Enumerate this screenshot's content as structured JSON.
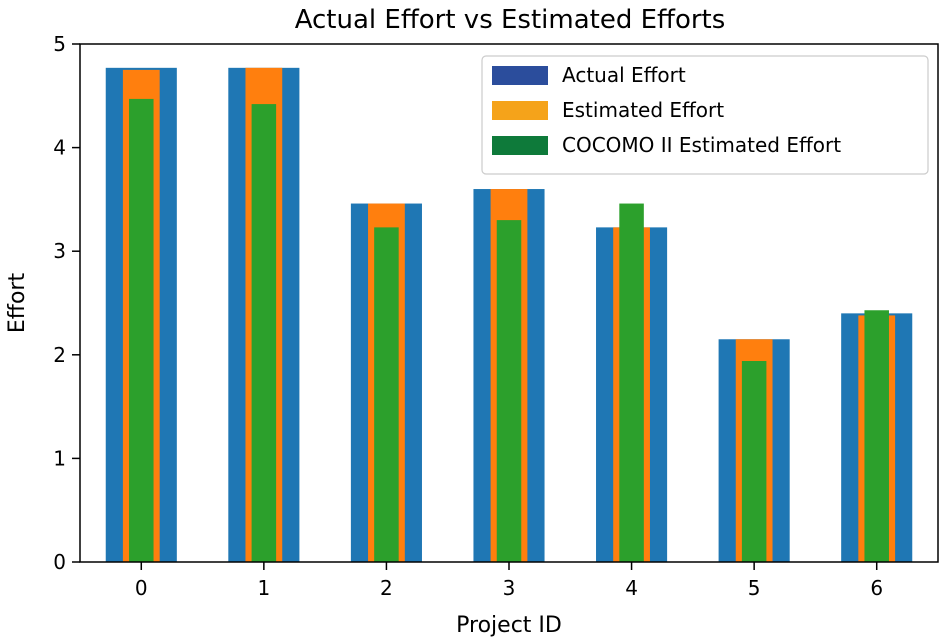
{
  "chart_data": {
    "type": "bar",
    "title": "Actual Effort vs Estimated Efforts",
    "xlabel": "Project ID",
    "ylabel": "Effort",
    "categories": [
      "0",
      "1",
      "2",
      "3",
      "4",
      "5",
      "6"
    ],
    "ylim": [
      0,
      5
    ],
    "yticks": [
      "0",
      "1",
      "2",
      "3",
      "4",
      "5"
    ],
    "series": [
      {
        "name": "Actual Effort",
        "color": "#1f77b4",
        "legend_color": "#2b4d9c",
        "values": [
          4.77,
          4.77,
          3.46,
          3.6,
          3.23,
          2.15,
          2.4
        ]
      },
      {
        "name": "Estimated Effort",
        "color": "#ff7f0e",
        "legend_color": "#f5a31a",
        "values": [
          4.75,
          4.77,
          3.46,
          3.6,
          3.23,
          2.15,
          2.38
        ]
      },
      {
        "name": "COCOMO II Estimated Effort",
        "color": "#2ca02c",
        "legend_color": "#0e7a3a",
        "values": [
          4.47,
          4.42,
          3.23,
          3.3,
          3.46,
          1.94,
          2.43
        ]
      }
    ],
    "legend_position": "top-right"
  }
}
